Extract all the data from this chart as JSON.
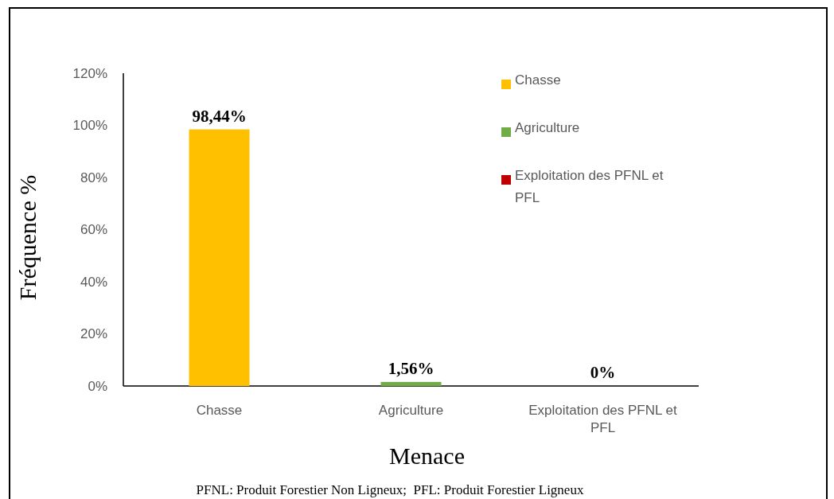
{
  "chart_data": {
    "type": "bar",
    "xlabel": "Menace",
    "ylabel": "Fréquence %",
    "categories": [
      "Chasse",
      "Agriculture",
      "Exploitation des PFNL et PFL"
    ],
    "series": [
      {
        "name": "Chasse",
        "color": "#ffc000",
        "values": [
          98.44,
          null,
          null
        ],
        "value_labels": [
          "98,44%",
          null,
          null
        ]
      },
      {
        "name": "Agriculture",
        "color": "#70ad47",
        "values": [
          null,
          1.56,
          null
        ],
        "value_labels": [
          null,
          "1,56%",
          null
        ]
      },
      {
        "name": "Exploitation des PFNL et PFL",
        "color": "#c00000",
        "values": [
          null,
          null,
          0
        ],
        "value_labels": [
          null,
          null,
          "0%"
        ]
      }
    ],
    "ylim": [
      0,
      120
    ],
    "yticks": [
      {
        "value": 0,
        "label": "0%"
      },
      {
        "value": 20,
        "label": "20%"
      },
      {
        "value": 40,
        "label": "40%"
      },
      {
        "value": 60,
        "label": "60%"
      },
      {
        "value": 80,
        "label": "80%"
      },
      {
        "value": 100,
        "label": "100%"
      },
      {
        "value": 120,
        "label": "120%"
      }
    ],
    "grid": false,
    "legend": "right",
    "annotations": [
      "PFNL: Produit Forestier Non Ligneux;  PFL: Produit Forestier Ligneux"
    ]
  }
}
